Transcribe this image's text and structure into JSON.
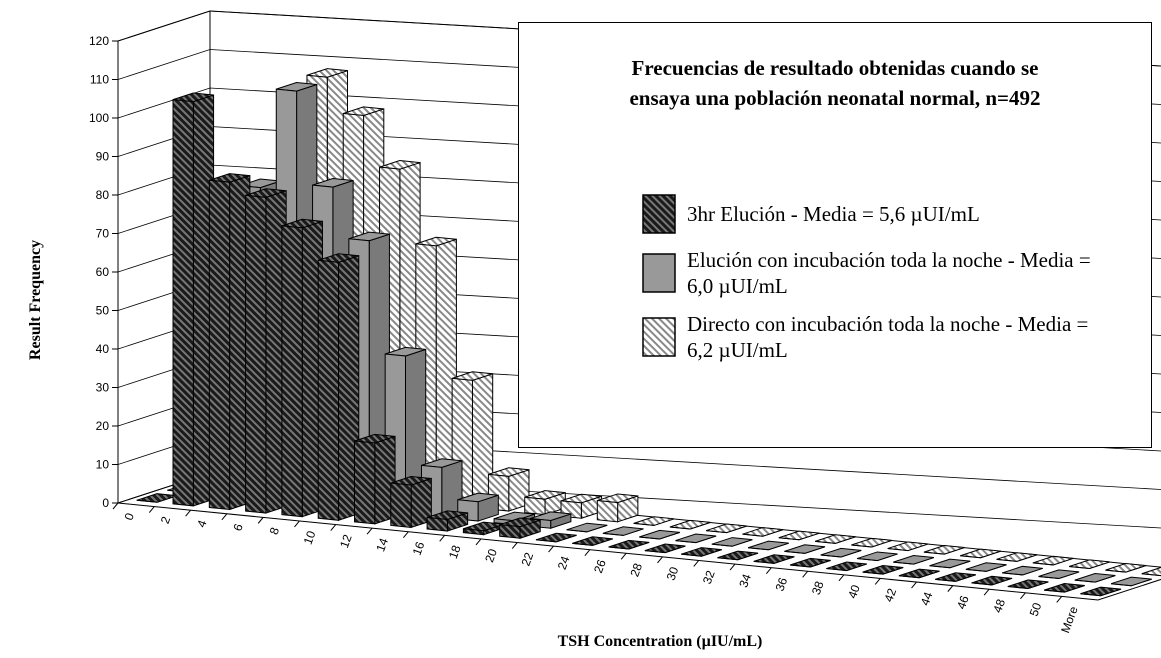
{
  "chart_data": {
    "type": "bar3d",
    "title": [
      "Frecuencias de resultado obtenidas cuando se",
      "ensaya una población neonatal normal, n=492"
    ],
    "x_label": "TSH Concentration (µIU/mL)",
    "y_label": "Result Frequency",
    "categories": [
      "0",
      "2",
      "4",
      "6",
      "8",
      "10",
      "12",
      "14",
      "16",
      "18",
      "20",
      "22",
      "24",
      "26",
      "28",
      "30",
      "32",
      "34",
      "36",
      "38",
      "40",
      "42",
      "44",
      "46",
      "48",
      "50",
      "More"
    ],
    "series": [
      {
        "name": "3hr Elución - Media = 5,6 µUI/mL",
        "color": "#1a1a1a",
        "hatched": true,
        "values": [
          0,
          105,
          85,
          82,
          75,
          67,
          21,
          11,
          3,
          1,
          3,
          0,
          0,
          0,
          0,
          0,
          0,
          0,
          0,
          0,
          0,
          0,
          0,
          0,
          0,
          0,
          0
        ]
      },
      {
        "name": "Elución con incubación toda la noche - Media = 6,0 µUI/mL",
        "color": "#999999",
        "hatched": false,
        "values": [
          0,
          63,
          81,
          107,
          83,
          70,
          41,
          13,
          5,
          1,
          2,
          0,
          0,
          0,
          0,
          0,
          0,
          0,
          0,
          0,
          0,
          0,
          0,
          0,
          0,
          0,
          0
        ]
      },
      {
        "name": "Directo con incubación toda la noche - Media = 6,2 µUI/mL",
        "color": "#ffffff",
        "hatched": true,
        "values": [
          0,
          0,
          67,
          108,
          99,
          86,
          67,
          33,
          9,
          4,
          4,
          5,
          0,
          0,
          0,
          0,
          0,
          0,
          0,
          0,
          0,
          0,
          0,
          0,
          0,
          0,
          0
        ]
      }
    ],
    "ylim": [
      0,
      120
    ],
    "yticks": [
      0,
      10,
      20,
      30,
      40,
      50,
      60,
      70,
      80,
      90,
      100,
      110,
      120
    ],
    "grid": true
  }
}
